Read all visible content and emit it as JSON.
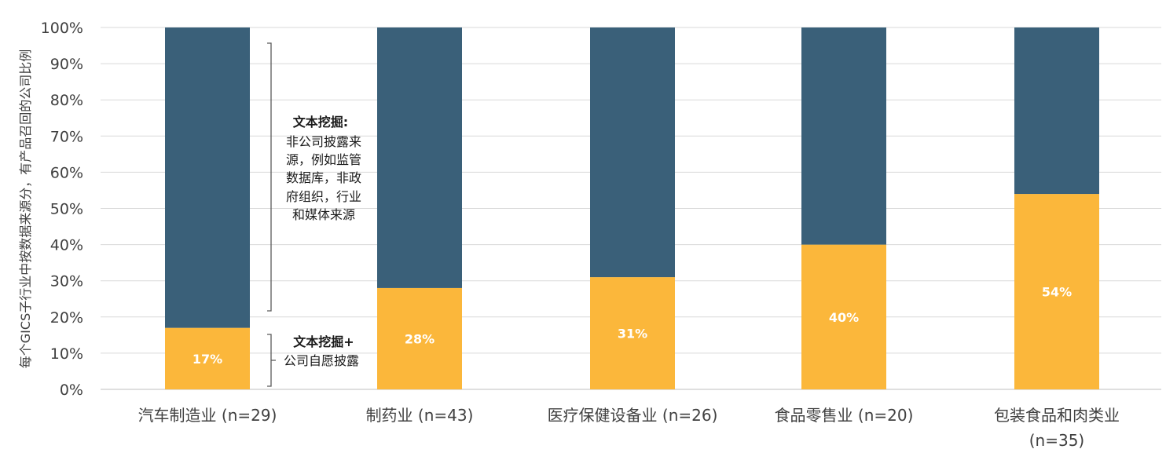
{
  "chart_data": {
    "type": "bar",
    "stacked": true,
    "ylabel": "每个GICS子行业中按数据来源分，有产品召回的公司比例",
    "ylim": [
      0,
      100
    ],
    "yticks": [
      "0%",
      "10%",
      "20%",
      "30%",
      "40%",
      "50%",
      "60%",
      "70%",
      "80%",
      "90%",
      "100%"
    ],
    "grid": true,
    "categories": [
      [
        "汽车制造业 (n=29)"
      ],
      [
        "制药业 (n=43)"
      ],
      [
        "医疗保健设备业 (n=26)"
      ],
      [
        "食品零售业 (n=20)"
      ],
      [
        "包装食品和肉类业",
        "(n=35)"
      ]
    ],
    "series": [
      {
        "values": [
          17,
          28,
          31,
          40,
          54
        ],
        "labels": [
          "17%",
          "28%",
          "31%",
          "40%",
          "54%"
        ],
        "color": "#fbb73b"
      },
      {
        "values": [
          83,
          72,
          69,
          60,
          46
        ],
        "color": "#3a6079"
      }
    ],
    "annotations": {
      "upper": {
        "title": "文本挖掘:",
        "lines": [
          "非公司披露来",
          "源，例如监管",
          "数据库，非政",
          "府组织，行业",
          "和媒体来源"
        ]
      },
      "lower": {
        "lines": [
          "文本挖掘+",
          "公司自愿披露"
        ]
      }
    }
  }
}
